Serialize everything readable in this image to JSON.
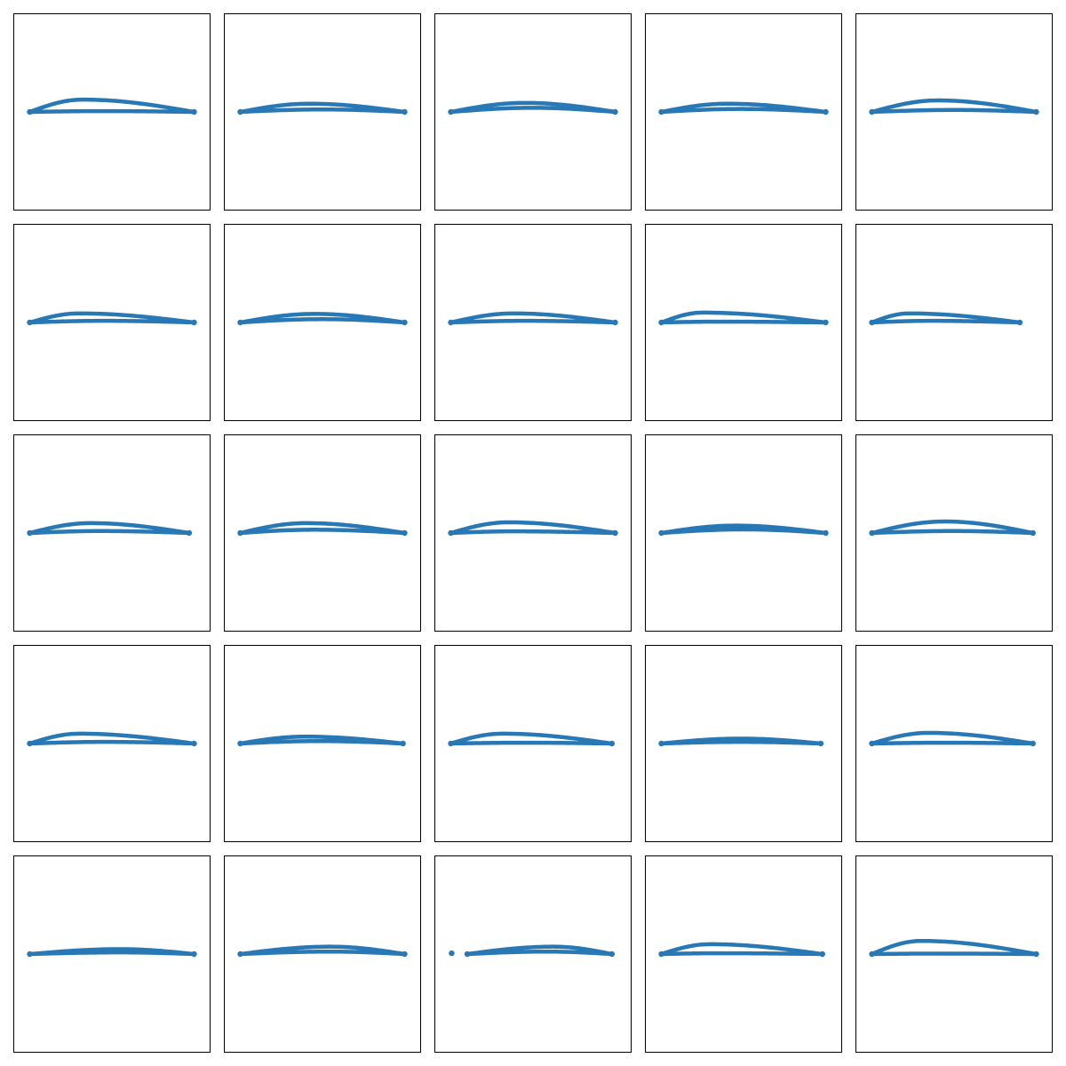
{
  "chart_data": {
    "type": "scatter",
    "title": "",
    "xlabel": "",
    "ylabel": "",
    "xlim": [
      -0.1,
      1.1
    ],
    "ylim": [
      -0.6,
      0.6
    ],
    "grid": false,
    "ticks": false,
    "layout": {
      "rows": 5,
      "cols": 5
    },
    "marker_color": "#2878b5",
    "frame_color": "#000000",
    "background_color": "#ffffff",
    "series_fields": [
      "x_extent",
      "upper_surface_peak_y",
      "upper_surface_peak_x",
      "lower_surface_peak_y",
      "lower_surface_peak_x"
    ],
    "series": [
      {
        "values": [
          [
            0.0,
            1.0
          ],
          0.075,
          0.32,
          0.005,
          0.45
        ]
      },
      {
        "values": [
          [
            0.0,
            1.0
          ],
          0.05,
          0.42,
          0.015,
          0.5
        ]
      },
      {
        "values": [
          [
            0.0,
            1.0
          ],
          0.055,
          0.45,
          0.025,
          0.5
        ]
      },
      {
        "values": [
          [
            0.0,
            1.0
          ],
          0.05,
          0.4,
          0.018,
          0.48
        ]
      },
      {
        "values": [
          [
            0.0,
            1.0
          ],
          0.07,
          0.4,
          0.012,
          0.5
        ]
      },
      {
        "values": [
          [
            0.0,
            1.0
          ],
          0.055,
          0.3,
          0.01,
          0.45
        ]
      },
      {
        "values": [
          [
            0.0,
            1.0
          ],
          0.052,
          0.45,
          0.02,
          0.5
        ]
      },
      {
        "values": [
          [
            0.0,
            1.0
          ],
          0.055,
          0.38,
          0.01,
          0.45
        ]
      },
      {
        "values": [
          [
            0.0,
            1.0
          ],
          0.06,
          0.25,
          0.005,
          0.35
        ]
      },
      {
        "values": [
          [
            0.0,
            0.9
          ],
          0.055,
          0.25,
          0.01,
          0.4
        ]
      },
      {
        "values": [
          [
            0.0,
            0.97
          ],
          0.06,
          0.38,
          0.012,
          0.45
        ]
      },
      {
        "values": [
          [
            0.0,
            1.0
          ],
          0.06,
          0.4,
          0.02,
          0.45
        ]
      },
      {
        "values": [
          [
            0.0,
            1.0
          ],
          0.065,
          0.35,
          0.01,
          0.38
        ]
      },
      {
        "values": [
          [
            0.0,
            1.0
          ],
          0.045,
          0.45,
          0.022,
          0.5
        ]
      },
      {
        "values": [
          [
            0.0,
            0.98
          ],
          0.07,
          0.45,
          0.012,
          0.5
        ]
      },
      {
        "values": [
          [
            0.0,
            1.0
          ],
          0.06,
          0.3,
          0.01,
          0.45
        ]
      },
      {
        "values": [
          [
            0.0,
            0.99
          ],
          0.042,
          0.4,
          0.015,
          0.48
        ]
      },
      {
        "values": [
          [
            0.0,
            0.98
          ],
          0.06,
          0.32,
          0.005,
          0.45
        ]
      },
      {
        "values": [
          [
            0.0,
            0.97
          ],
          0.03,
          0.5,
          0.01,
          0.5
        ]
      },
      {
        "values": [
          [
            0.0,
            0.98
          ],
          0.065,
          0.35,
          0.005,
          0.45
        ]
      },
      {
        "values": [
          [
            0.0,
            1.0
          ],
          0.03,
          0.55,
          0.01,
          0.55
        ]
      },
      {
        "values": [
          [
            0.0,
            1.0
          ],
          0.045,
          0.55,
          0.015,
          0.55
        ]
      },
      {
        "values": [
          [
            0.1,
            0.98
          ],
          0.045,
          0.6,
          0.015,
          0.55
        ]
      },
      {
        "values": [
          [
            0.0,
            0.98
          ],
          0.06,
          0.3,
          0.005,
          0.35
        ]
      },
      {
        "values": [
          [
            0.0,
            1.0
          ],
          0.08,
          0.3,
          0.003,
          0.4
        ]
      }
    ]
  }
}
